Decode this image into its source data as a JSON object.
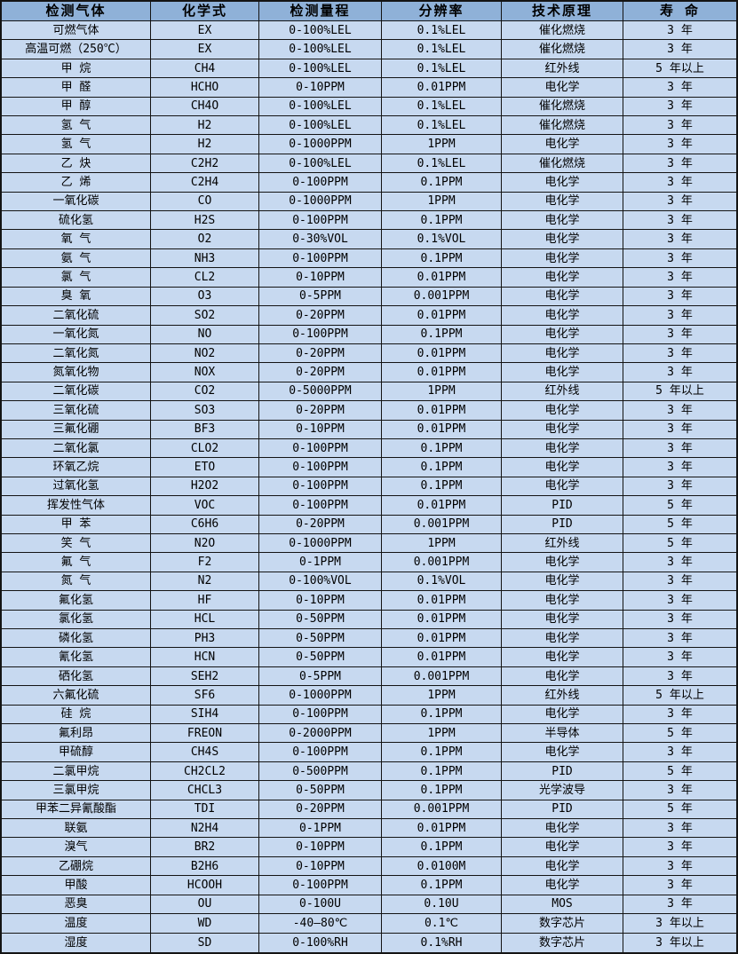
{
  "colors": {
    "header_bg": "#8fb1d8",
    "row_bg": "#c7d9f0",
    "border": "#141414",
    "text": "#000000"
  },
  "table": {
    "columns": [
      "检测气体",
      "化学式",
      "检测量程",
      "分辨率",
      "技术原理",
      "寿 命"
    ],
    "rows": [
      [
        "可燃气体",
        "EX",
        "0-100%LEL",
        "0.1%LEL",
        "催化燃烧",
        "3 年"
      ],
      [
        "高温可燃（250℃）",
        "EX",
        "0-100%LEL",
        "0.1%LEL",
        "催化燃烧",
        "3 年"
      ],
      [
        "甲 烷",
        "CH4",
        "0-100%LEL",
        "0.1%LEL",
        "红外线",
        "5 年以上"
      ],
      [
        "甲 醛",
        "HCHO",
        "0-10PPM",
        "0.01PPM",
        "电化学",
        "3 年"
      ],
      [
        "甲 醇",
        "CH4O",
        "0-100%LEL",
        "0.1%LEL",
        "催化燃烧",
        "3 年"
      ],
      [
        "氢 气",
        "H2",
        "0-100%LEL",
        "0.1%LEL",
        "催化燃烧",
        "3 年"
      ],
      [
        "氢 气",
        "H2",
        "0-1000PPM",
        "1PPM",
        "电化学",
        "3 年"
      ],
      [
        "乙 炔",
        "C2H2",
        "0-100%LEL",
        "0.1%LEL",
        "催化燃烧",
        "3 年"
      ],
      [
        "乙 烯",
        "C2H4",
        "0-100PPM",
        "0.1PPM",
        "电化学",
        "3 年"
      ],
      [
        "一氧化碳",
        "CO",
        "0-1000PPM",
        "1PPM",
        "电化学",
        "3 年"
      ],
      [
        "硫化氢",
        "H2S",
        "0-100PPM",
        "0.1PPM",
        "电化学",
        "3 年"
      ],
      [
        "氧 气",
        "O2",
        "0-30%VOL",
        "0.1%VOL",
        "电化学",
        "3 年"
      ],
      [
        "氨 气",
        "NH3",
        "0-100PPM",
        "0.1PPM",
        "电化学",
        "3 年"
      ],
      [
        "氯 气",
        "CL2",
        "0-10PPM",
        "0.01PPM",
        "电化学",
        "3 年"
      ],
      [
        "臭 氧",
        "O3",
        "0-5PPM",
        "0.001PPM",
        "电化学",
        "3 年"
      ],
      [
        "二氧化硫",
        "SO2",
        "0-20PPM",
        "0.01PPM",
        "电化学",
        "3 年"
      ],
      [
        "一氧化氮",
        "NO",
        "0-100PPM",
        "0.1PPM",
        "电化学",
        "3 年"
      ],
      [
        "二氧化氮",
        "NO2",
        "0-20PPM",
        "0.01PPM",
        "电化学",
        "3 年"
      ],
      [
        "氮氧化物",
        "NOX",
        "0-20PPM",
        "0.01PPM",
        "电化学",
        "3 年"
      ],
      [
        "二氧化碳",
        "CO2",
        "0-5000PPM",
        "1PPM",
        "红外线",
        "5 年以上"
      ],
      [
        "三氧化硫",
        "SO3",
        "0-20PPM",
        "0.01PPM",
        "电化学",
        "3 年"
      ],
      [
        "三氟化硼",
        "BF3",
        "0-10PPM",
        "0.01PPM",
        "电化学",
        "3 年"
      ],
      [
        "二氧化氯",
        "CLO2",
        "0-100PPM",
        "0.1PPM",
        "电化学",
        "3 年"
      ],
      [
        "环氧乙烷",
        "ETO",
        "0-100PPM",
        "0.1PPM",
        "电化学",
        "3 年"
      ],
      [
        "过氧化氢",
        "H2O2",
        "0-100PPM",
        "0.1PPM",
        "电化学",
        "3 年"
      ],
      [
        "挥发性气体",
        "VOC",
        "0-100PPM",
        "0.01PPM",
        "PID",
        "5 年"
      ],
      [
        "甲 苯",
        "C6H6",
        "0-20PPM",
        "0.001PPM",
        "PID",
        "5 年"
      ],
      [
        "笑 气",
        "N2O",
        "0-1000PPM",
        "1PPM",
        "红外线",
        "5 年"
      ],
      [
        "氟 气",
        "F2",
        "0-1PPM",
        "0.001PPM",
        "电化学",
        "3 年"
      ],
      [
        "氮 气",
        "N2",
        "0-100%VOL",
        "0.1%VOL",
        "电化学",
        "3 年"
      ],
      [
        "氟化氢",
        "HF",
        "0-10PPM",
        "0.01PPM",
        "电化学",
        "3 年"
      ],
      [
        "氯化氢",
        "HCL",
        "0-50PPM",
        "0.01PPM",
        "电化学",
        "3 年"
      ],
      [
        "磷化氢",
        "PH3",
        "0-50PPM",
        "0.01PPM",
        "电化学",
        "3 年"
      ],
      [
        "氰化氢",
        "HCN",
        "0-50PPM",
        "0.01PPM",
        "电化学",
        "3 年"
      ],
      [
        "硒化氢",
        "SEH2",
        "0-5PPM",
        "0.001PPM",
        "电化学",
        "3 年"
      ],
      [
        "六氟化硫",
        "SF6",
        "0-1000PPM",
        "1PPM",
        "红外线",
        "5 年以上"
      ],
      [
        "硅 烷",
        "SIH4",
        "0-100PPM",
        "0.1PPM",
        "电化学",
        "3 年"
      ],
      [
        "氟利昂",
        "FREON",
        "0-2000PPM",
        "1PPM",
        "半导体",
        "5 年"
      ],
      [
        "甲硫醇",
        "CH4S",
        "0-100PPM",
        "0.1PPM",
        "电化学",
        "3 年"
      ],
      [
        "二氯甲烷",
        "CH2CL2",
        "0-500PPM",
        "0.1PPM",
        "PID",
        "5 年"
      ],
      [
        "三氯甲烷",
        "CHCL3",
        "0-50PPM",
        "0.1PPM",
        "光学波导",
        "3 年"
      ],
      [
        "甲苯二异氰酸酯",
        "TDI",
        "0-20PPM",
        "0.001PPM",
        "PID",
        "5 年"
      ],
      [
        "联氨",
        "N2H4",
        "0-1PPM",
        "0.01PPM",
        "电化学",
        "3 年"
      ],
      [
        "溴气",
        "BR2",
        "0-10PPM",
        "0.1PPM",
        "电化学",
        "3 年"
      ],
      [
        "乙硼烷",
        "B2H6",
        "0-10PPM",
        "0.0100M",
        "电化学",
        "3 年"
      ],
      [
        "甲酸",
        "HCOOH",
        "0-100PPM",
        "0.1PPM",
        "电化学",
        "3 年"
      ],
      [
        "恶臭",
        "OU",
        "0-100U",
        "0.10U",
        "MOS",
        "3 年"
      ],
      [
        "温度",
        "WD",
        "-40—80℃",
        "0.1℃",
        "数字芯片",
        "3 年以上"
      ],
      [
        "湿度",
        "SD",
        "0-100%RH",
        "0.1%RH",
        "数字芯片",
        "3 年以上"
      ]
    ]
  }
}
